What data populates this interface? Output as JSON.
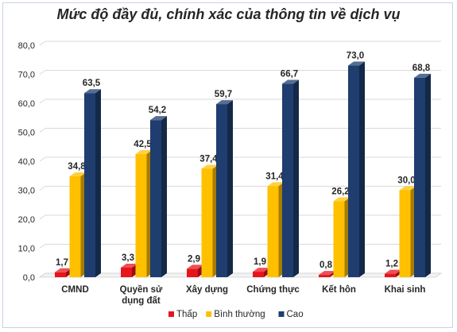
{
  "chart_data": {
    "type": "bar",
    "title": "Mức độ đầy đủ, chính xác của thông tin về dịch vụ",
    "categories": [
      "CMND",
      "Quyền sử dụng đất",
      "Xây dựng",
      "Chứng thực",
      "Kết hôn",
      "Khai sinh"
    ],
    "category_lines": [
      [
        "CMND"
      ],
      [
        "Quyền sử",
        "dụng đất"
      ],
      [
        "Xây dựng"
      ],
      [
        "Chứng thực"
      ],
      [
        "Kết hôn"
      ],
      [
        "Khai sinh"
      ]
    ],
    "series": [
      {
        "name": "Thấp",
        "color": "#e8141c",
        "values": [
          1.7,
          3.3,
          2.9,
          1.9,
          0.8,
          1.2
        ],
        "labels": [
          "1,7",
          "3,3",
          "2,9",
          "1,9",
          "0,8",
          "1,2"
        ]
      },
      {
        "name": "Bình thường",
        "color": "#ffc000",
        "values": [
          34.8,
          42.5,
          37.4,
          31.4,
          26.2,
          30.0
        ],
        "labels": [
          "34,8",
          "42,5",
          "37,4",
          "31,4",
          "26,2",
          "30,0"
        ]
      },
      {
        "name": "Cao",
        "color": "#1f3d6e",
        "values": [
          63.5,
          54.2,
          59.7,
          66.7,
          73.0,
          68.8
        ],
        "labels": [
          "63,5",
          "54,2",
          "59,7",
          "66,7",
          "73,0",
          "68,8"
        ]
      }
    ],
    "ylim": [
      0,
      80
    ],
    "yticks": [
      "0,0",
      "10,0",
      "20,0",
      "30,0",
      "40,0",
      "50,0",
      "60,0",
      "70,0",
      "80,0"
    ],
    "grid": true,
    "legend_position": "bottom",
    "xlabel": "",
    "ylabel": ""
  }
}
